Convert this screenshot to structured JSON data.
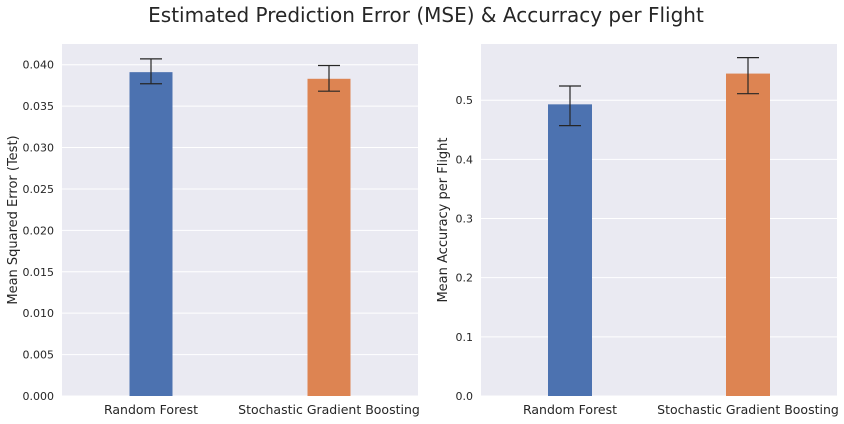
{
  "title": "Estimated Prediction Error (MSE) & Accurracy per Flight",
  "style": {
    "background": "#eaeaf2",
    "grid_color": "#ffffff",
    "text_color": "#262626",
    "error_bar_color": "#262626"
  },
  "chart_data": [
    {
      "type": "bar",
      "title": "",
      "xlabel": "",
      "ylabel": "Mean Squared Error (Test)",
      "categories": [
        "Random Forest",
        "Stochastic Gradient Boosting"
      ],
      "values": [
        0.0391,
        0.0383
      ],
      "error_low": [
        0.0377,
        0.0368
      ],
      "error_high": [
        0.0407,
        0.0399
      ],
      "colors": [
        "#4c72b0",
        "#dd8452"
      ],
      "ylim": [
        0,
        0.0425
      ],
      "yticks": [
        0.0,
        0.005,
        0.01,
        0.015,
        0.02,
        0.025,
        0.03,
        0.035,
        0.04
      ],
      "ytick_labels": [
        "0.000",
        "0.005",
        "0.010",
        "0.015",
        "0.020",
        "0.025",
        "0.030",
        "0.035",
        "0.040"
      ],
      "grid": true,
      "legend": "none"
    },
    {
      "type": "bar",
      "title": "",
      "xlabel": "",
      "ylabel": "Mean Accuracy per Flight",
      "categories": [
        "Random Forest",
        "Stochastic Gradient Boosting"
      ],
      "values": [
        0.493,
        0.545
      ],
      "error_low": [
        0.457,
        0.511
      ],
      "error_high": [
        0.524,
        0.572
      ],
      "colors": [
        "#4c72b0",
        "#dd8452"
      ],
      "ylim": [
        0,
        0.595
      ],
      "yticks": [
        0.0,
        0.1,
        0.2,
        0.3,
        0.4,
        0.5
      ],
      "ytick_labels": [
        "0.0",
        "0.1",
        "0.2",
        "0.3",
        "0.4",
        "0.5"
      ],
      "grid": true,
      "legend": "none"
    }
  ]
}
